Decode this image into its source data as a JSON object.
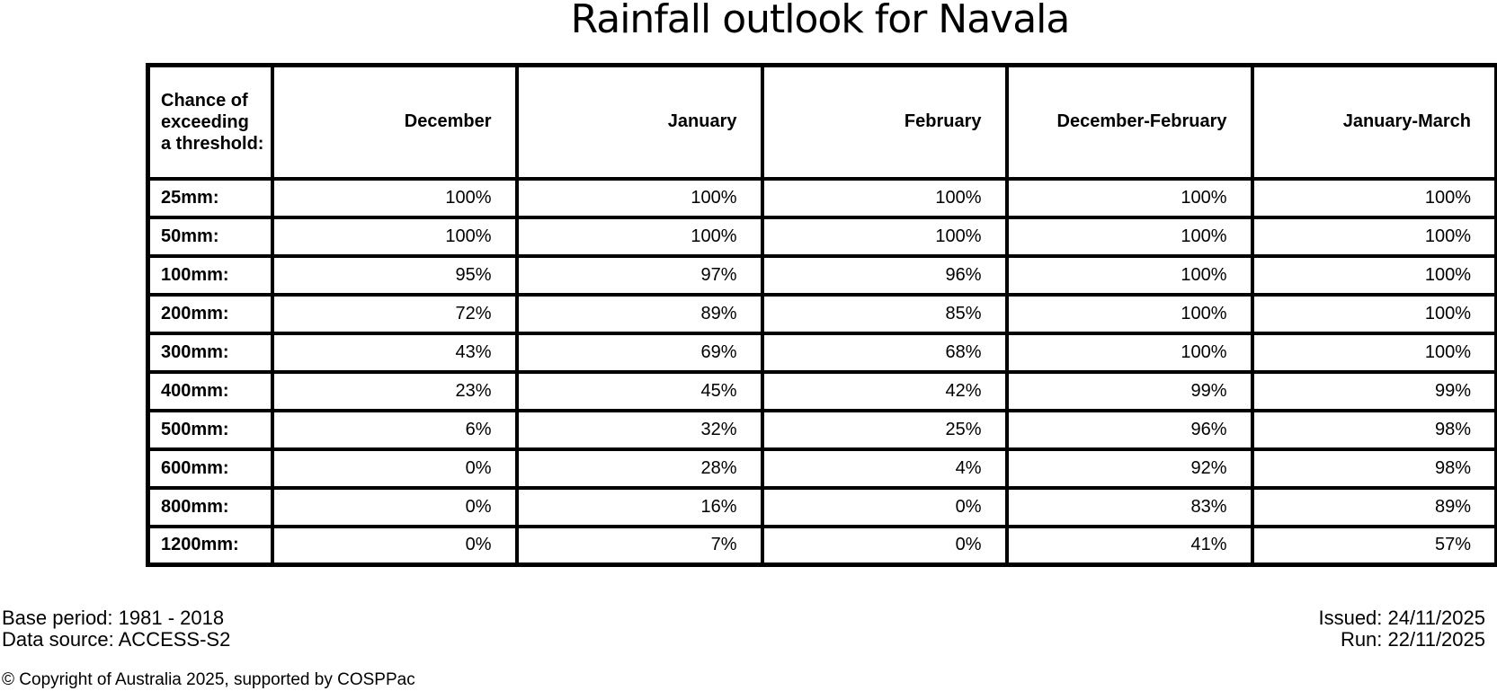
{
  "title": "Rainfall outlook for Navala",
  "table": {
    "corner_header": "Chance of\nexceeding\na threshold:",
    "columns": [
      "December",
      "January",
      "February",
      "December-February",
      "January-March"
    ],
    "rows": [
      {
        "label": "25mm:",
        "values": [
          "100%",
          "100%",
          "100%",
          "100%",
          "100%"
        ]
      },
      {
        "label": "50mm:",
        "values": [
          "100%",
          "100%",
          "100%",
          "100%",
          "100%"
        ]
      },
      {
        "label": "100mm:",
        "values": [
          "95%",
          "97%",
          "96%",
          "100%",
          "100%"
        ]
      },
      {
        "label": "200mm:",
        "values": [
          "72%",
          "89%",
          "85%",
          "100%",
          "100%"
        ]
      },
      {
        "label": "300mm:",
        "values": [
          "43%",
          "69%",
          "68%",
          "100%",
          "100%"
        ]
      },
      {
        "label": "400mm:",
        "values": [
          "23%",
          "45%",
          "42%",
          "99%",
          "99%"
        ]
      },
      {
        "label": "500mm:",
        "values": [
          "6%",
          "32%",
          "25%",
          "96%",
          "98%"
        ]
      },
      {
        "label": "600mm:",
        "values": [
          "0%",
          "28%",
          "4%",
          "92%",
          "98%"
        ]
      },
      {
        "label": "800mm:",
        "values": [
          "0%",
          "16%",
          "0%",
          "83%",
          "89%"
        ]
      },
      {
        "label": "1200mm:",
        "values": [
          "0%",
          "7%",
          "0%",
          "41%",
          "57%"
        ]
      }
    ]
  },
  "chart_data": {
    "type": "table",
    "title": "Rainfall outlook for Navala",
    "row_header": "Chance of exceeding a threshold:",
    "unit": "%",
    "categories": [
      "25mm",
      "50mm",
      "100mm",
      "200mm",
      "300mm",
      "400mm",
      "500mm",
      "600mm",
      "800mm",
      "1200mm"
    ],
    "series": [
      {
        "name": "December",
        "values": [
          100,
          100,
          95,
          72,
          43,
          23,
          6,
          0,
          0,
          0
        ]
      },
      {
        "name": "January",
        "values": [
          100,
          100,
          97,
          89,
          69,
          45,
          32,
          28,
          16,
          7
        ]
      },
      {
        "name": "February",
        "values": [
          100,
          100,
          96,
          85,
          68,
          42,
          25,
          4,
          0,
          0
        ]
      },
      {
        "name": "December-February",
        "values": [
          100,
          100,
          100,
          100,
          100,
          99,
          96,
          92,
          83,
          41
        ]
      },
      {
        "name": "January-March",
        "values": [
          100,
          100,
          100,
          100,
          100,
          99,
          98,
          98,
          89,
          57
        ]
      }
    ]
  },
  "footer": {
    "base_period": "Base period: 1981 - 2018",
    "data_source": "Data source: ACCESS-S2",
    "issued": "Issued: 24/11/2025",
    "run": "Run: 22/11/2025",
    "copyright": "© Copyright of Australia 2025, supported by COSPPac"
  },
  "colors": {
    "background": "#ffffff",
    "text": "#000000",
    "border": "#000000"
  }
}
